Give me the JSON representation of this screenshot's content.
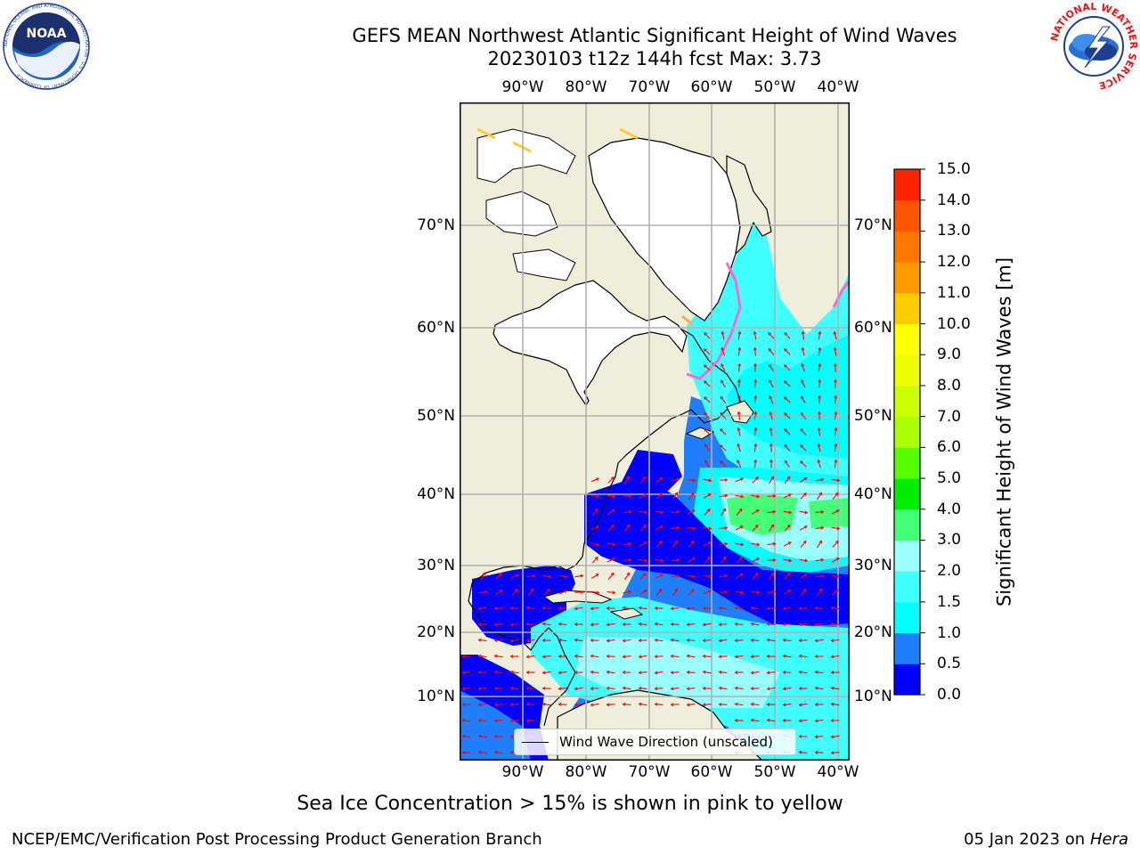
{
  "title": "GEFS MEAN Northwest Atlantic Significant Height of Wind Waves",
  "subtitle": "20230103 t12z 144h fcst   Max: 3.73",
  "logos": {
    "noaa": "NOAA",
    "noaa_ring": "NATIONAL OCEANIC AND ATMOSPHERIC ADMINISTRATION · U.S. DEPARTMENT OF COMMERCE",
    "nws": "NATIONAL WEATHER SERVICE"
  },
  "map": {
    "lon_ticks": [
      "90°W",
      "80°W",
      "70°W",
      "60°W",
      "50°W",
      "40°W"
    ],
    "lat_ticks": [
      "70°N",
      "60°N",
      "50°N",
      "40°N",
      "30°N",
      "20°N",
      "10°N"
    ],
    "legend": "Wind Wave Direction (unscaled)"
  },
  "colorbar": {
    "label": "Significant Height of Wind Waves [m]",
    "ticks": [
      "0.0",
      "0.5",
      "1.0",
      "1.5",
      "2.0",
      "3.0",
      "4.0",
      "5.0",
      "6.0",
      "7.0",
      "8.0",
      "9.0",
      "10.0",
      "11.0",
      "12.0",
      "13.0",
      "14.0",
      "15.0"
    ],
    "colors": [
      "#0000ff",
      "#1f7fff",
      "#00ffff",
      "#40ffff",
      "#99ffff",
      "#44ff77",
      "#00ee00",
      "#55ff00",
      "#aaff00",
      "#ccff00",
      "#eeff00",
      "#ffff00",
      "#ffcc00",
      "#ff9900",
      "#ff7700",
      "#ff5500",
      "#ff2200",
      "#ff0000"
    ]
  },
  "colors": {
    "land": "#efeedb",
    "ice_white": "#ffffff",
    "grid": "#b0b0b0",
    "vector": "#ff0000"
  },
  "footer": {
    "note": "Sea Ice Concentration > 15% is shown in pink to yellow",
    "left": "NCEP/EMC/Verification Post Processing Product Generation Branch",
    "date": "05 Jan 2023 on",
    "machine": "Hera"
  }
}
